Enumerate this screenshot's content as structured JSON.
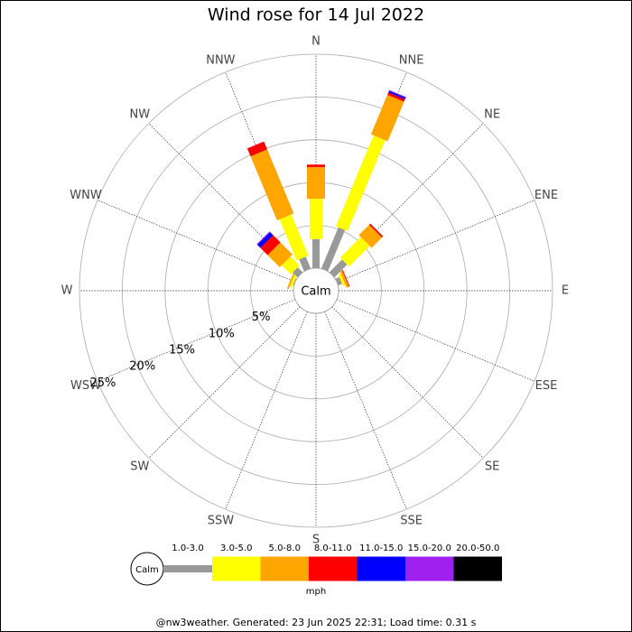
{
  "chart_data": {
    "type": "windrose",
    "title": "Wind rose for 14 Jul 2022",
    "categories": [
      "N",
      "NNE",
      "NE",
      "ENE",
      "E",
      "ESE",
      "SE",
      "SSE",
      "S",
      "SSW",
      "SW",
      "WSW",
      "W",
      "WNW",
      "NW",
      "NNW"
    ],
    "center_label": "Calm",
    "series": [
      {
        "name": "1.0-3.0",
        "color": "#999999",
        "values": [
          3.4,
          5.2,
          2.1,
          0.5,
          0,
          0,
          0,
          0,
          0,
          0,
          0,
          0,
          0,
          0.1,
          0.8,
          1.5
        ]
      },
      {
        "name": "3.0-5.0",
        "color": "#ffff00",
        "values": [
          4.7,
          11.5,
          3.4,
          0.3,
          0,
          0,
          0,
          0,
          0,
          0,
          0,
          0,
          0,
          0.3,
          1.5,
          5.2
        ]
      },
      {
        "name": "5.0-8.0",
        "color": "#ffa500",
        "values": [
          3.7,
          5.0,
          1.7,
          0.3,
          0,
          0,
          0,
          0,
          0,
          0,
          0,
          0,
          0,
          0.2,
          2.0,
          8.1
        ]
      },
      {
        "name": "8.0-11.0",
        "color": "#ff0000",
        "values": [
          0.3,
          0.3,
          0.2,
          0.1,
          0,
          0,
          0,
          0,
          0,
          0,
          0,
          0,
          0,
          0,
          1.2,
          1.0
        ]
      },
      {
        "name": "11.0-15.0",
        "color": "#0000ff",
        "values": [
          0,
          0.2,
          0,
          0,
          0,
          0,
          0,
          0,
          0,
          0,
          0,
          0,
          0,
          0,
          0.5,
          0
        ]
      },
      {
        "name": "15.0-20.0",
        "color": "#a020f0",
        "values": [
          0,
          0.1,
          0,
          0,
          0,
          0,
          0,
          0,
          0,
          0,
          0,
          0,
          0,
          0,
          0.1,
          0
        ]
      },
      {
        "name": "20.0-50.0",
        "color": "#000000",
        "values": [
          0,
          0,
          0,
          0,
          0,
          0,
          0,
          0,
          0,
          0,
          0,
          0,
          0,
          0,
          0,
          0
        ]
      }
    ],
    "rlim": [
      0,
      25
    ],
    "rticks": [
      {
        "value": 5,
        "label": "5%"
      },
      {
        "value": 10,
        "label": "10%"
      },
      {
        "value": 15,
        "label": "15%"
      },
      {
        "value": 20,
        "label": "20%"
      },
      {
        "value": 25,
        "label": "25%"
      }
    ],
    "legend_unit": "mph",
    "footer": "@nw3weather. Generated: 23 Jun 2025 22:31; Load time: 0.31 s"
  }
}
